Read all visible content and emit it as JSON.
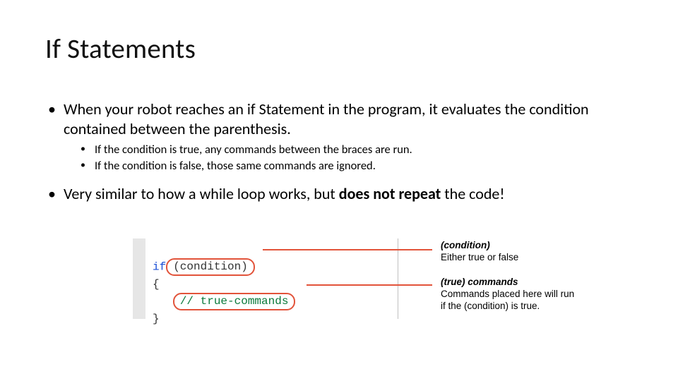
{
  "title": "If Statements",
  "bullets": {
    "b1": "When your robot reaches an if Statement in the program, it evaluates the condition contained between the parenthesis.",
    "b1a": "If the condition is true, any commands between the braces are run.",
    "b1b": "If the condition is false, those same commands are ignored.",
    "b2_pre": "Very similar to how a while loop works, but ",
    "b2_bold": "does not repeat",
    "b2_post": " the code!"
  },
  "code": {
    "kw_if": "if",
    "cond_pill": "(condition)",
    "open_brace": "{",
    "cmd_pill": "// true-commands",
    "close_brace": "}"
  },
  "anno": {
    "cond_head": "(condition)",
    "cond_body": "Either true or false",
    "cmd_head": "(true) commands",
    "cmd_body1": "Commands placed here will run",
    "cmd_body2": "if the (condition) is true."
  },
  "colors": {
    "highlight_border": "#e2533a",
    "keyword": "#1a4fd6",
    "comment": "#0a7a3b",
    "gutter": "#e6e6e6"
  }
}
